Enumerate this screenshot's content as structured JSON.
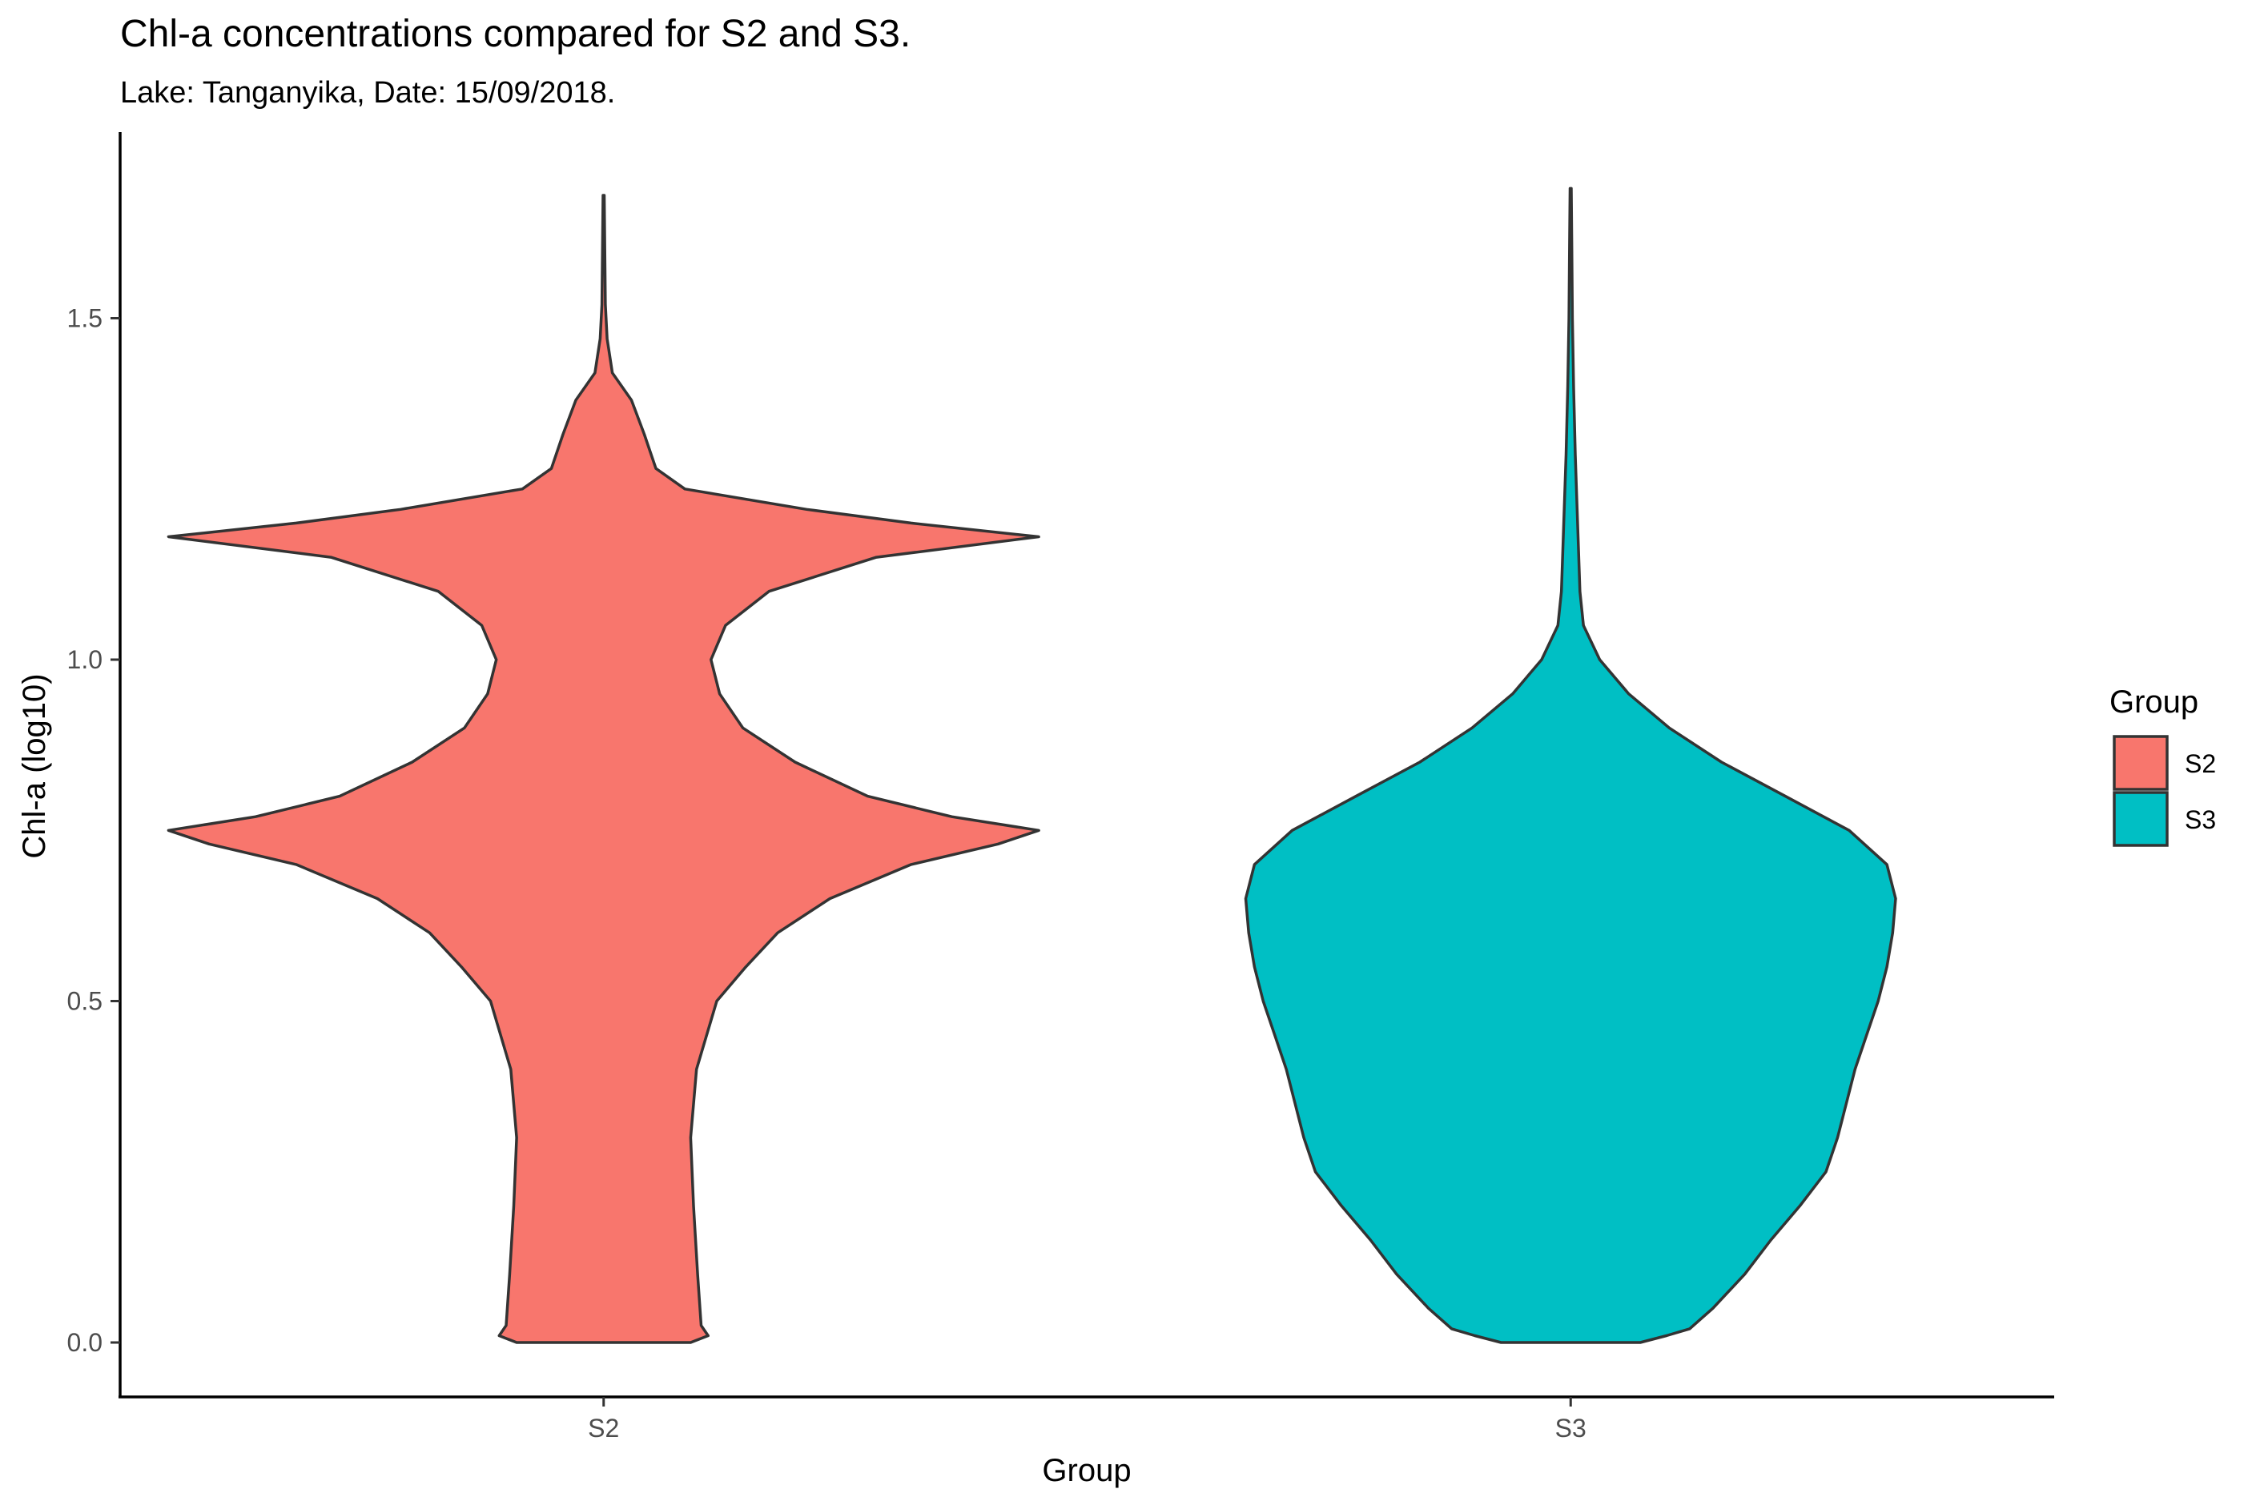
{
  "chart_data": {
    "type": "violin",
    "title": "Chl-a concentrations compared for S2 and S3.",
    "subtitle": "Lake: Tanganyika, Date: 15/09/2018.",
    "xlabel": "Group",
    "ylabel": "Chl-a (log10)",
    "categories": [
      "S2",
      "S3"
    ],
    "ylim": [
      -0.08,
      1.72
    ],
    "yticks": [
      0.0,
      0.5,
      1.0,
      1.5
    ],
    "ytick_labels": [
      "0.0",
      "0.5",
      "1.0",
      "1.5"
    ],
    "grid": false,
    "legend": {
      "title": "Group",
      "placement": "right",
      "entries": [
        "S2",
        "S3"
      ]
    },
    "series": [
      {
        "name": "S2",
        "color": "#F8766D",
        "density_profile": [
          [
            0.0,
            0.15
          ],
          [
            0.01,
            0.18
          ],
          [
            0.025,
            0.168
          ],
          [
            0.1,
            0.162
          ],
          [
            0.2,
            0.155
          ],
          [
            0.3,
            0.15
          ],
          [
            0.4,
            0.16
          ],
          [
            0.5,
            0.195
          ],
          [
            0.55,
            0.245
          ],
          [
            0.6,
            0.3
          ],
          [
            0.65,
            0.39
          ],
          [
            0.7,
            0.53
          ],
          [
            0.73,
            0.68
          ],
          [
            0.75,
            0.75
          ],
          [
            0.77,
            0.6
          ],
          [
            0.8,
            0.455
          ],
          [
            0.85,
            0.33
          ],
          [
            0.9,
            0.24
          ],
          [
            0.95,
            0.2
          ],
          [
            1.0,
            0.185
          ],
          [
            1.05,
            0.21
          ],
          [
            1.1,
            0.285
          ],
          [
            1.15,
            0.47
          ],
          [
            1.18,
            0.75
          ],
          [
            1.2,
            0.53
          ],
          [
            1.22,
            0.35
          ],
          [
            1.25,
            0.14
          ],
          [
            1.28,
            0.09
          ],
          [
            1.33,
            0.07
          ],
          [
            1.38,
            0.048
          ],
          [
            1.42,
            0.015
          ],
          [
            1.47,
            0.006
          ],
          [
            1.52,
            0.003
          ],
          [
            1.6,
            0.002
          ],
          [
            1.68,
            0.001
          ]
        ]
      },
      {
        "name": "S3",
        "color": "#00BFC4",
        "density_profile": [
          [
            0.0,
            0.12
          ],
          [
            0.01,
            0.165
          ],
          [
            0.02,
            0.205
          ],
          [
            0.05,
            0.245
          ],
          [
            0.1,
            0.3
          ],
          [
            0.15,
            0.345
          ],
          [
            0.2,
            0.395
          ],
          [
            0.25,
            0.44
          ],
          [
            0.3,
            0.46
          ],
          [
            0.35,
            0.475
          ],
          [
            0.4,
            0.49
          ],
          [
            0.45,
            0.51
          ],
          [
            0.5,
            0.53
          ],
          [
            0.55,
            0.545
          ],
          [
            0.6,
            0.555
          ],
          [
            0.65,
            0.56
          ],
          [
            0.7,
            0.545
          ],
          [
            0.75,
            0.48
          ],
          [
            0.8,
            0.37
          ],
          [
            0.85,
            0.26
          ],
          [
            0.9,
            0.17
          ],
          [
            0.95,
            0.1
          ],
          [
            1.0,
            0.05
          ],
          [
            1.05,
            0.022
          ],
          [
            1.1,
            0.016
          ],
          [
            1.2,
            0.012
          ],
          [
            1.3,
            0.008
          ],
          [
            1.4,
            0.005
          ],
          [
            1.5,
            0.003
          ],
          [
            1.6,
            0.002
          ],
          [
            1.69,
            0.001
          ]
        ]
      }
    ]
  }
}
